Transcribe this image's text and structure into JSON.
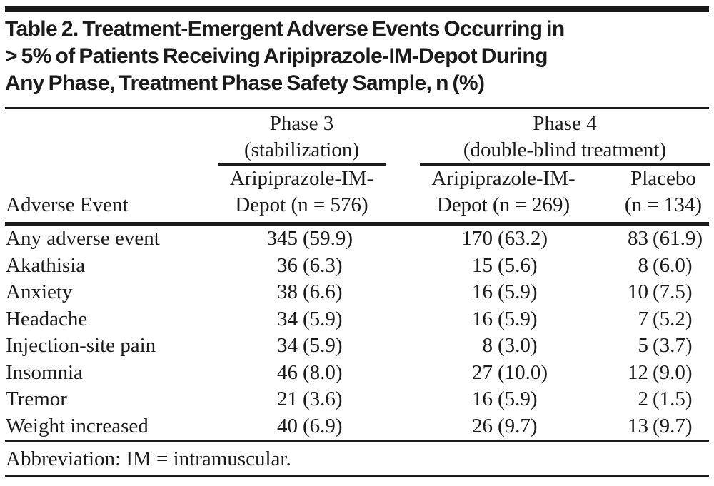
{
  "colors": {
    "ink": "#1b1b1b",
    "background": "#ffffff"
  },
  "page": {
    "title_lines": [
      "Table 2. Treatment-Emergent Adverse Events Occurring in",
      "> 5% of Patients Receiving Aripiprazole-IM-Depot During",
      "Any Phase, Treatment Phase Safety Sample, n (%)"
    ]
  },
  "table": {
    "stub_header": "Adverse Event",
    "group_headers": [
      {
        "name": "Phase 3",
        "qualifier": "(stabilization)"
      },
      {
        "name": "Phase 4",
        "qualifier": "(double-blind treatment)"
      }
    ],
    "column_headers": [
      {
        "line1": "Aripiprazole-IM-",
        "line2": "Depot (n = 576)"
      },
      {
        "line1": "Aripiprazole-IM-",
        "line2": "Depot (n = 269)"
      },
      {
        "line1": "Placebo",
        "line2": "(n = 134)"
      }
    ],
    "rows": [
      {
        "label": "Any adverse event",
        "phase3_n": "345",
        "phase3_pct": "(59.9)",
        "phase4_n": "170",
        "phase4_pct": "(63.2)",
        "placebo_n": "83",
        "placebo_pct": "(61.9)"
      },
      {
        "label": "Akathisia",
        "phase3_n": "36",
        "phase3_pct": "(6.3)",
        "phase4_n": "15",
        "phase4_pct": "(5.6)",
        "placebo_n": "8",
        "placebo_pct": "(6.0)"
      },
      {
        "label": "Anxiety",
        "phase3_n": "38",
        "phase3_pct": "(6.6)",
        "phase4_n": "16",
        "phase4_pct": "(5.9)",
        "placebo_n": "10",
        "placebo_pct": "(7.5)"
      },
      {
        "label": "Headache",
        "phase3_n": "34",
        "phase3_pct": "(5.9)",
        "phase4_n": "16",
        "phase4_pct": "(5.9)",
        "placebo_n": "7",
        "placebo_pct": "(5.2)"
      },
      {
        "label": "Injection-site pain",
        "phase3_n": "34",
        "phase3_pct": "(5.9)",
        "phase4_n": "8",
        "phase4_pct": "(3.0)",
        "placebo_n": "5",
        "placebo_pct": "(3.7)"
      },
      {
        "label": "Insomnia",
        "phase3_n": "46",
        "phase3_pct": "(8.0)",
        "phase4_n": "27",
        "phase4_pct": "(10.0)",
        "placebo_n": "12",
        "placebo_pct": "(9.0)"
      },
      {
        "label": "Tremor",
        "phase3_n": "21",
        "phase3_pct": "(3.6)",
        "phase4_n": "16",
        "phase4_pct": "(5.9)",
        "placebo_n": "2",
        "placebo_pct": "(1.5)"
      },
      {
        "label": "Weight increased",
        "phase3_n": "40",
        "phase3_pct": "(6.9)",
        "phase4_n": "26",
        "phase4_pct": "(9.7)",
        "placebo_n": "13",
        "placebo_pct": "(9.7)"
      }
    ],
    "footnote": "Abbreviation: IM = intramuscular."
  }
}
